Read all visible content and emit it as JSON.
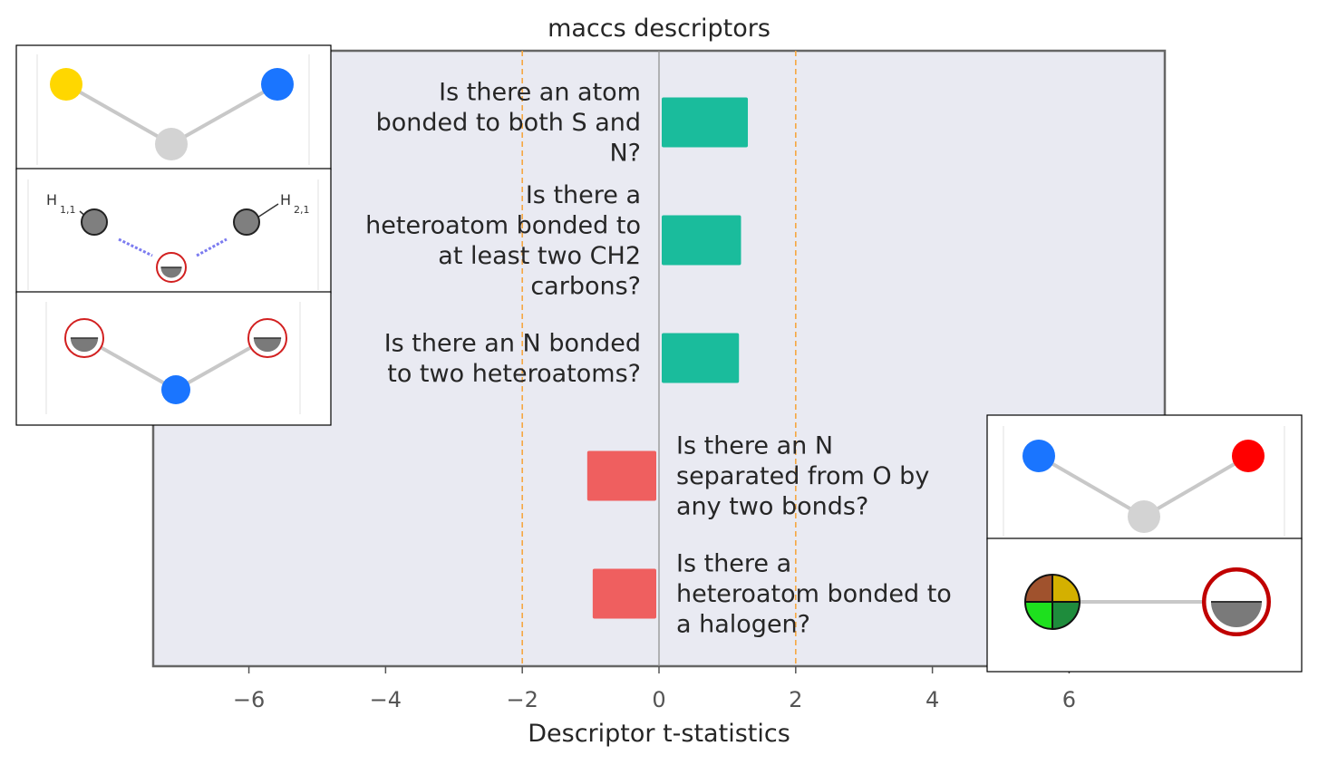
{
  "chart_data": {
    "type": "bar",
    "orientation": "horizontal",
    "title": "maccs descriptors",
    "xlabel": "Descriptor t-statistics",
    "ylabel": "",
    "xlim": [
      -7.4,
      7.4
    ],
    "xticks": [
      -6,
      -4,
      -2,
      0,
      2,
      4,
      6
    ],
    "xtick_labels": [
      "−6",
      "−4",
      "−2",
      "0",
      "2",
      "4",
      "6"
    ],
    "threshold_lines": [
      -2,
      2
    ],
    "grid": false,
    "categories": [
      "Is there an atom bonded to both S and N?",
      "Is there a heteroatom bonded to at least two CH2 carbons?",
      "Is there an N bonded to two heteroatoms?",
      "Is there an N separated from O by any two bonds?",
      "Is there a heteroatom bonded to a halogen?"
    ],
    "label_lines": [
      [
        "Is there an atom",
        "bonded to both S and",
        "N?"
      ],
      [
        "Is there a",
        "heteroatom bonded to",
        "at least two CH2",
        "carbons?"
      ],
      [
        "Is there an N bonded",
        "to two heteroatoms?"
      ],
      [
        "Is there an N",
        "separated from O by",
        "any two bonds?"
      ],
      [
        "Is there a",
        "heteroatom bonded to",
        "a halogen?"
      ]
    ],
    "values": [
      1.3,
      1.2,
      1.17,
      -1.05,
      -0.97
    ],
    "colors": {
      "positive": "#1abc9c",
      "negative": "#ef5f5f",
      "plot_background": "#e9eaf2",
      "threshold": "#f5a742",
      "zero_line": "#8c8c8c"
    },
    "insets": [
      {
        "attached_to": 0,
        "label_texts": []
      },
      {
        "attached_to": 1,
        "label_texts": [
          "H",
          "1,1",
          "H",
          "2,1"
        ]
      },
      {
        "attached_to": 2,
        "label_texts": []
      },
      {
        "attached_to": 3,
        "label_texts": []
      },
      {
        "attached_to": 4,
        "label_texts": []
      }
    ]
  }
}
